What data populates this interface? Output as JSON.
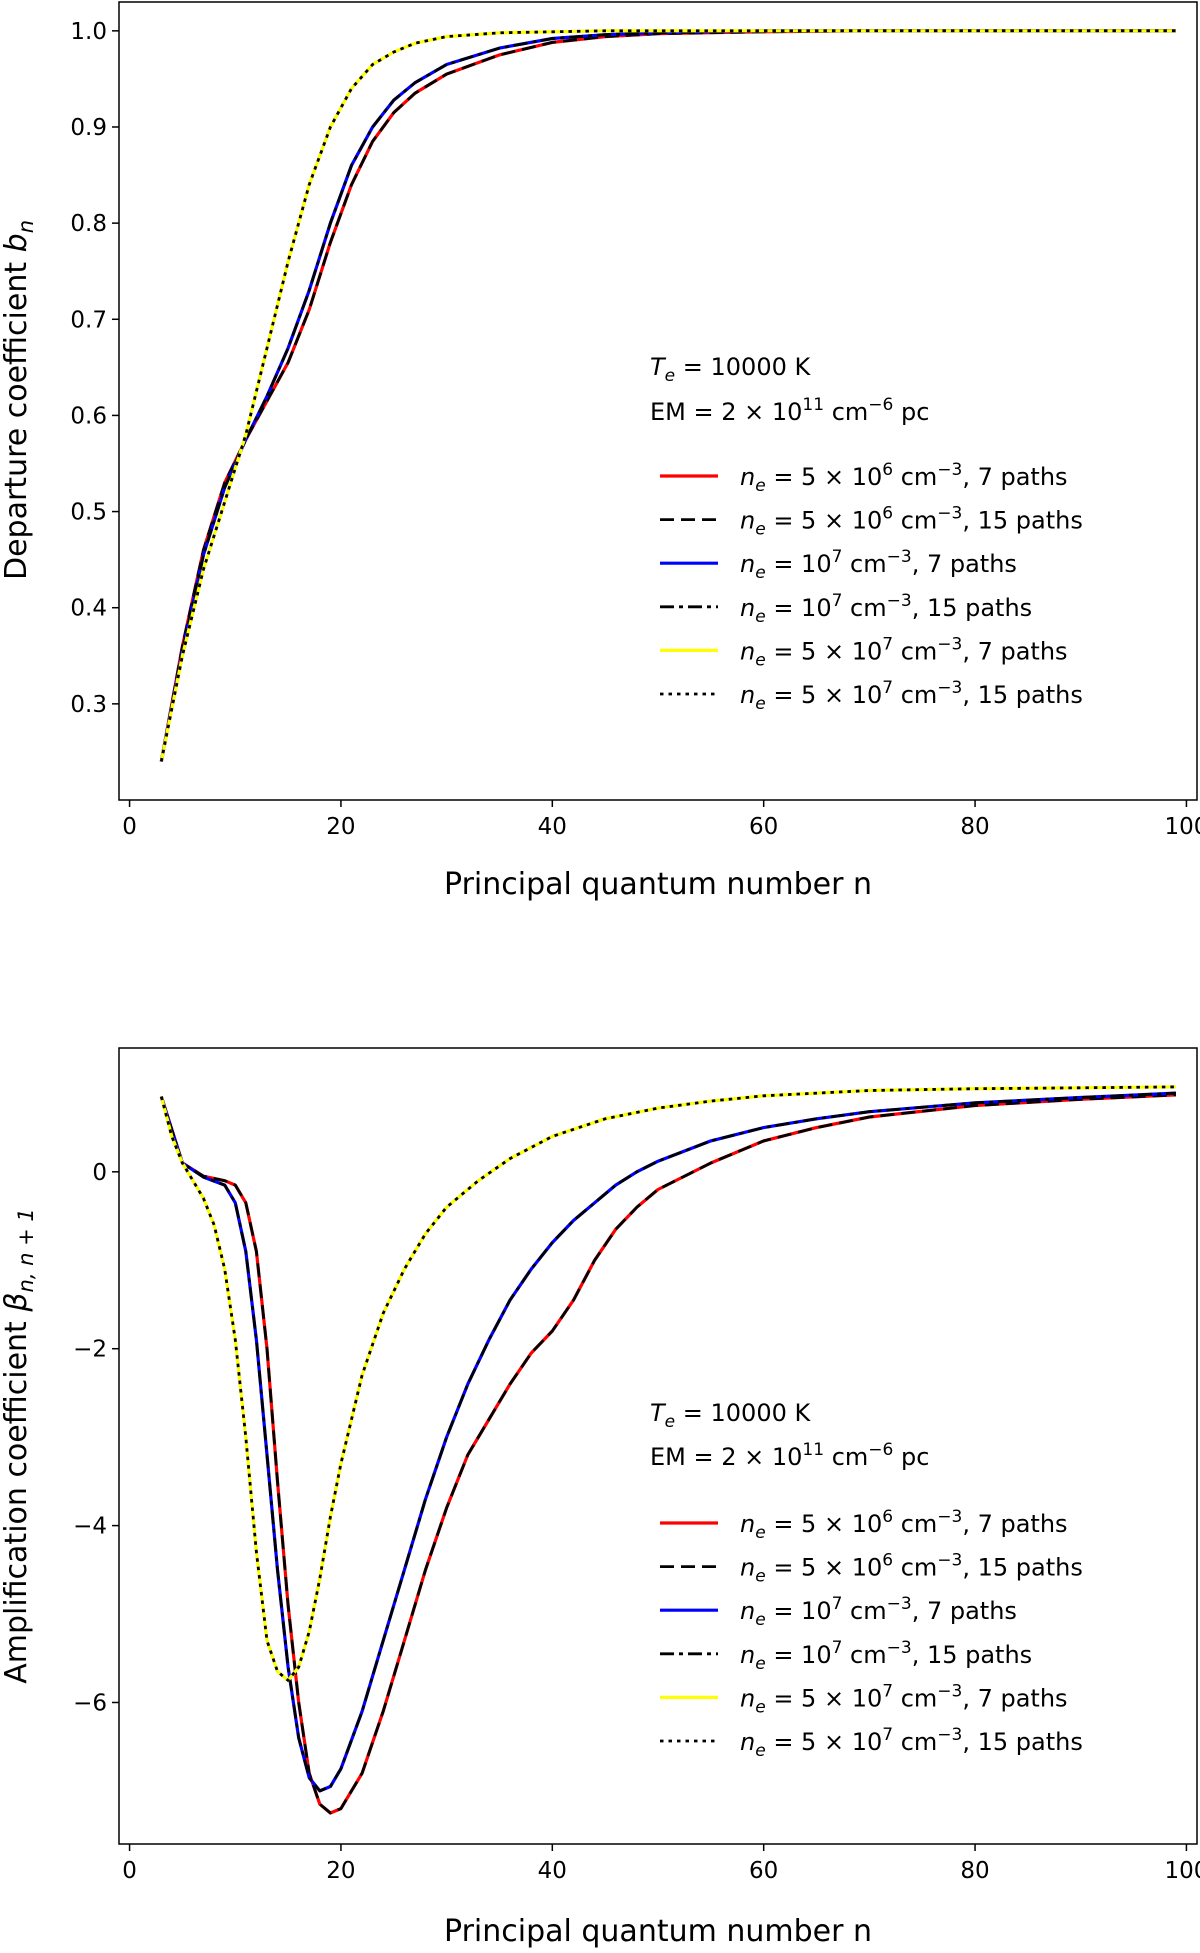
{
  "chart_data": [
    {
      "type": "line",
      "xlabel": "Principal quantum number n",
      "ylabel": "Departure coefficient b_n",
      "xlim": [
        -1,
        101
      ],
      "ylim": [
        0.2,
        1.03
      ],
      "xticks": [
        0,
        20,
        40,
        60,
        80,
        100
      ],
      "yticks": [
        0.3,
        0.4,
        0.5,
        0.6,
        0.7,
        0.8,
        0.9,
        1.0
      ],
      "ytick_labels": [
        "0.3",
        "0.4",
        "0.5",
        "0.6",
        "0.7",
        "0.8",
        "0.9",
        "1.0"
      ],
      "annotation_lines": [
        "T_e = 10000 K",
        "EM = 2 × 10^11 cm^-6 pc"
      ],
      "legend_position": "center-right",
      "series": [
        {
          "name": "n_e = 5 × 10^6 cm^-3, 7 paths",
          "color": "#ff0000",
          "style": "solid",
          "x": [
            3,
            5,
            7,
            9,
            11,
            13,
            15,
            17,
            19,
            21,
            23,
            25,
            27,
            30,
            35,
            40,
            45,
            50,
            60,
            70,
            80,
            90,
            99
          ],
          "y": [
            0.24,
            0.36,
            0.46,
            0.53,
            0.575,
            0.615,
            0.655,
            0.71,
            0.78,
            0.84,
            0.885,
            0.915,
            0.935,
            0.955,
            0.975,
            0.988,
            0.994,
            0.997,
            0.999,
            1.0,
            1.0,
            1.0,
            1.0
          ]
        },
        {
          "name": "n_e = 5 × 10^6 cm^-3, 15 paths",
          "color": "#000000",
          "style": "dashed",
          "x": [
            3,
            5,
            7,
            9,
            11,
            13,
            15,
            17,
            19,
            21,
            23,
            25,
            27,
            30,
            35,
            40,
            45,
            50,
            60,
            70,
            80,
            90,
            99
          ],
          "y": [
            0.24,
            0.36,
            0.46,
            0.53,
            0.575,
            0.615,
            0.655,
            0.71,
            0.78,
            0.84,
            0.885,
            0.915,
            0.935,
            0.955,
            0.975,
            0.988,
            0.994,
            0.997,
            0.999,
            1.0,
            1.0,
            1.0,
            1.0
          ]
        },
        {
          "name": "n_e = 10^7 cm^-3, 7 paths",
          "color": "#0000ff",
          "style": "solid",
          "x": [
            3,
            5,
            7,
            9,
            11,
            13,
            15,
            17,
            19,
            21,
            23,
            25,
            27,
            30,
            35,
            40,
            45,
            50,
            60,
            70,
            80,
            90,
            99
          ],
          "y": [
            0.24,
            0.355,
            0.455,
            0.525,
            0.575,
            0.62,
            0.67,
            0.73,
            0.8,
            0.86,
            0.9,
            0.928,
            0.946,
            0.965,
            0.982,
            0.992,
            0.996,
            0.998,
            1.0,
            1.0,
            1.0,
            1.0,
            1.0
          ]
        },
        {
          "name": "n_e = 10^7 cm^-3, 15 paths",
          "color": "#000000",
          "style": "dashdot",
          "x": [
            3,
            5,
            7,
            9,
            11,
            13,
            15,
            17,
            19,
            21,
            23,
            25,
            27,
            30,
            35,
            40,
            45,
            50,
            60,
            70,
            80,
            90,
            99
          ],
          "y": [
            0.24,
            0.355,
            0.455,
            0.525,
            0.575,
            0.62,
            0.67,
            0.73,
            0.8,
            0.86,
            0.9,
            0.928,
            0.946,
            0.965,
            0.982,
            0.992,
            0.996,
            0.998,
            1.0,
            1.0,
            1.0,
            1.0,
            1.0
          ]
        },
        {
          "name": "n_e = 5 × 10^7 cm^-3, 7 paths",
          "color": "#ffff00",
          "style": "solid",
          "x": [
            3,
            5,
            7,
            9,
            11,
            13,
            15,
            17,
            19,
            21,
            23,
            25,
            27,
            30,
            35,
            40,
            45,
            50,
            60,
            70,
            80,
            90,
            99
          ],
          "y": [
            0.24,
            0.35,
            0.44,
            0.51,
            0.58,
            0.67,
            0.76,
            0.84,
            0.9,
            0.94,
            0.965,
            0.978,
            0.987,
            0.994,
            0.998,
            0.999,
            1.0,
            1.0,
            1.0,
            1.0,
            1.0,
            1.0,
            1.0
          ]
        },
        {
          "name": "n_e = 5 × 10^7 cm^-3, 15 paths",
          "color": "#000000",
          "style": "dotted",
          "x": [
            3,
            5,
            7,
            9,
            11,
            13,
            15,
            17,
            19,
            21,
            23,
            25,
            27,
            30,
            35,
            40,
            45,
            50,
            60,
            70,
            80,
            90,
            99
          ],
          "y": [
            0.24,
            0.35,
            0.44,
            0.51,
            0.58,
            0.67,
            0.76,
            0.84,
            0.9,
            0.94,
            0.965,
            0.978,
            0.987,
            0.994,
            0.998,
            0.999,
            1.0,
            1.0,
            1.0,
            1.0,
            1.0,
            1.0,
            1.0
          ]
        }
      ]
    },
    {
      "type": "line",
      "xlabel": "Principal quantum number n",
      "ylabel": "Amplification coefficient β_{n,n+1}",
      "xlim": [
        -1,
        101
      ],
      "ylim": [
        -7.6,
        1.4
      ],
      "xticks": [
        0,
        20,
        40,
        60,
        80,
        100
      ],
      "yticks": [
        -6,
        -4,
        -2,
        0
      ],
      "ytick_labels": [
        "−6",
        "−4",
        "−2",
        "0"
      ],
      "annotation_lines": [
        "T_e = 10000 K",
        "EM = 2 × 10^11 cm^-6 pc"
      ],
      "legend_position": "center-right",
      "series": [
        {
          "name": "n_e = 5 × 10^6 cm^-3, 7 paths",
          "color": "#ff0000",
          "style": "solid",
          "x": [
            3,
            5,
            7,
            9,
            10,
            11,
            12,
            13,
            14,
            15,
            16,
            17,
            18,
            19,
            20,
            22,
            24,
            26,
            28,
            30,
            32,
            34,
            36,
            38,
            40,
            42,
            44,
            46,
            48,
            50,
            55,
            60,
            65,
            70,
            80,
            90,
            99
          ],
          "y": [
            0.85,
            0.1,
            -0.05,
            -0.1,
            -0.15,
            -0.35,
            -0.9,
            -2.0,
            -3.5,
            -4.9,
            -6.0,
            -6.8,
            -7.15,
            -7.25,
            -7.2,
            -6.8,
            -6.1,
            -5.3,
            -4.5,
            -3.8,
            -3.2,
            -2.8,
            -2.4,
            -2.05,
            -1.8,
            -1.45,
            -1.0,
            -0.65,
            -0.4,
            -0.2,
            0.1,
            0.35,
            0.5,
            0.62,
            0.75,
            0.82,
            0.87
          ]
        },
        {
          "name": "n_e = 5 × 10^6 cm^-3, 15 paths",
          "color": "#000000",
          "style": "dashed",
          "x": [
            3,
            5,
            7,
            9,
            10,
            11,
            12,
            13,
            14,
            15,
            16,
            17,
            18,
            19,
            20,
            22,
            24,
            26,
            28,
            30,
            32,
            34,
            36,
            38,
            40,
            42,
            44,
            46,
            48,
            50,
            55,
            60,
            65,
            70,
            80,
            90,
            99
          ],
          "y": [
            0.85,
            0.1,
            -0.05,
            -0.1,
            -0.15,
            -0.35,
            -0.9,
            -2.0,
            -3.5,
            -4.9,
            -6.0,
            -6.8,
            -7.15,
            -7.25,
            -7.2,
            -6.8,
            -6.1,
            -5.3,
            -4.5,
            -3.8,
            -3.2,
            -2.8,
            -2.4,
            -2.05,
            -1.8,
            -1.45,
            -1.0,
            -0.65,
            -0.4,
            -0.2,
            0.1,
            0.35,
            0.5,
            0.62,
            0.75,
            0.82,
            0.87
          ]
        },
        {
          "name": "n_e = 10^7 cm^-3, 7 paths",
          "color": "#0000ff",
          "style": "solid",
          "x": [
            3,
            5,
            7,
            9,
            10,
            11,
            12,
            13,
            14,
            15,
            16,
            17,
            18,
            19,
            20,
            22,
            24,
            26,
            28,
            30,
            32,
            34,
            36,
            38,
            40,
            42,
            44,
            46,
            48,
            50,
            55,
            60,
            65,
            70,
            80,
            90,
            99
          ],
          "y": [
            0.85,
            0.1,
            -0.06,
            -0.15,
            -0.35,
            -0.9,
            -1.9,
            -3.2,
            -4.5,
            -5.6,
            -6.4,
            -6.85,
            -7.0,
            -6.95,
            -6.75,
            -6.1,
            -5.3,
            -4.5,
            -3.7,
            -3.0,
            -2.4,
            -1.9,
            -1.45,
            -1.1,
            -0.8,
            -0.55,
            -0.35,
            -0.15,
            0.0,
            0.12,
            0.35,
            0.5,
            0.6,
            0.68,
            0.78,
            0.84,
            0.89
          ]
        },
        {
          "name": "n_e = 10^7 cm^-3, 15 paths",
          "color": "#000000",
          "style": "dashdot",
          "x": [
            3,
            5,
            7,
            9,
            10,
            11,
            12,
            13,
            14,
            15,
            16,
            17,
            18,
            19,
            20,
            22,
            24,
            26,
            28,
            30,
            32,
            34,
            36,
            38,
            40,
            42,
            44,
            46,
            48,
            50,
            55,
            60,
            65,
            70,
            80,
            90,
            99
          ],
          "y": [
            0.85,
            0.1,
            -0.06,
            -0.15,
            -0.35,
            -0.9,
            -1.9,
            -3.2,
            -4.5,
            -5.6,
            -6.4,
            -6.85,
            -7.0,
            -6.95,
            -6.75,
            -6.1,
            -5.3,
            -4.5,
            -3.7,
            -3.0,
            -2.4,
            -1.9,
            -1.45,
            -1.1,
            -0.8,
            -0.55,
            -0.35,
            -0.15,
            0.0,
            0.12,
            0.35,
            0.5,
            0.6,
            0.68,
            0.78,
            0.84,
            0.89
          ]
        },
        {
          "name": "n_e = 5 × 10^7 cm^-3, 7 paths",
          "color": "#ffff00",
          "style": "solid",
          "x": [
            3,
            4,
            5,
            6,
            7,
            8,
            9,
            10,
            11,
            12,
            13,
            14,
            15,
            16,
            17,
            18,
            19,
            20,
            22,
            24,
            26,
            28,
            30,
            33,
            36,
            40,
            45,
            50,
            55,
            60,
            70,
            80,
            90,
            99
          ],
          "y": [
            0.85,
            0.4,
            0.1,
            -0.1,
            -0.3,
            -0.6,
            -1.1,
            -1.9,
            -3.0,
            -4.3,
            -5.3,
            -5.65,
            -5.75,
            -5.6,
            -5.2,
            -4.6,
            -3.9,
            -3.3,
            -2.3,
            -1.6,
            -1.1,
            -0.7,
            -0.4,
            -0.1,
            0.15,
            0.4,
            0.6,
            0.72,
            0.8,
            0.86,
            0.92,
            0.94,
            0.95,
            0.96
          ]
        },
        {
          "name": "n_e = 5 × 10^7 cm^-3, 15 paths",
          "color": "#000000",
          "style": "dotted",
          "x": [
            3,
            4,
            5,
            6,
            7,
            8,
            9,
            10,
            11,
            12,
            13,
            14,
            15,
            16,
            17,
            18,
            19,
            20,
            22,
            24,
            26,
            28,
            30,
            33,
            36,
            40,
            45,
            50,
            55,
            60,
            70,
            80,
            90,
            99
          ],
          "y": [
            0.85,
            0.4,
            0.1,
            -0.1,
            -0.3,
            -0.6,
            -1.1,
            -1.9,
            -3.0,
            -4.3,
            -5.3,
            -5.65,
            -5.75,
            -5.6,
            -5.2,
            -4.6,
            -3.9,
            -3.3,
            -2.3,
            -1.6,
            -1.1,
            -0.7,
            -0.4,
            -0.1,
            0.15,
            0.4,
            0.6,
            0.72,
            0.8,
            0.86,
            0.92,
            0.94,
            0.95,
            0.96
          ]
        }
      ]
    }
  ]
}
